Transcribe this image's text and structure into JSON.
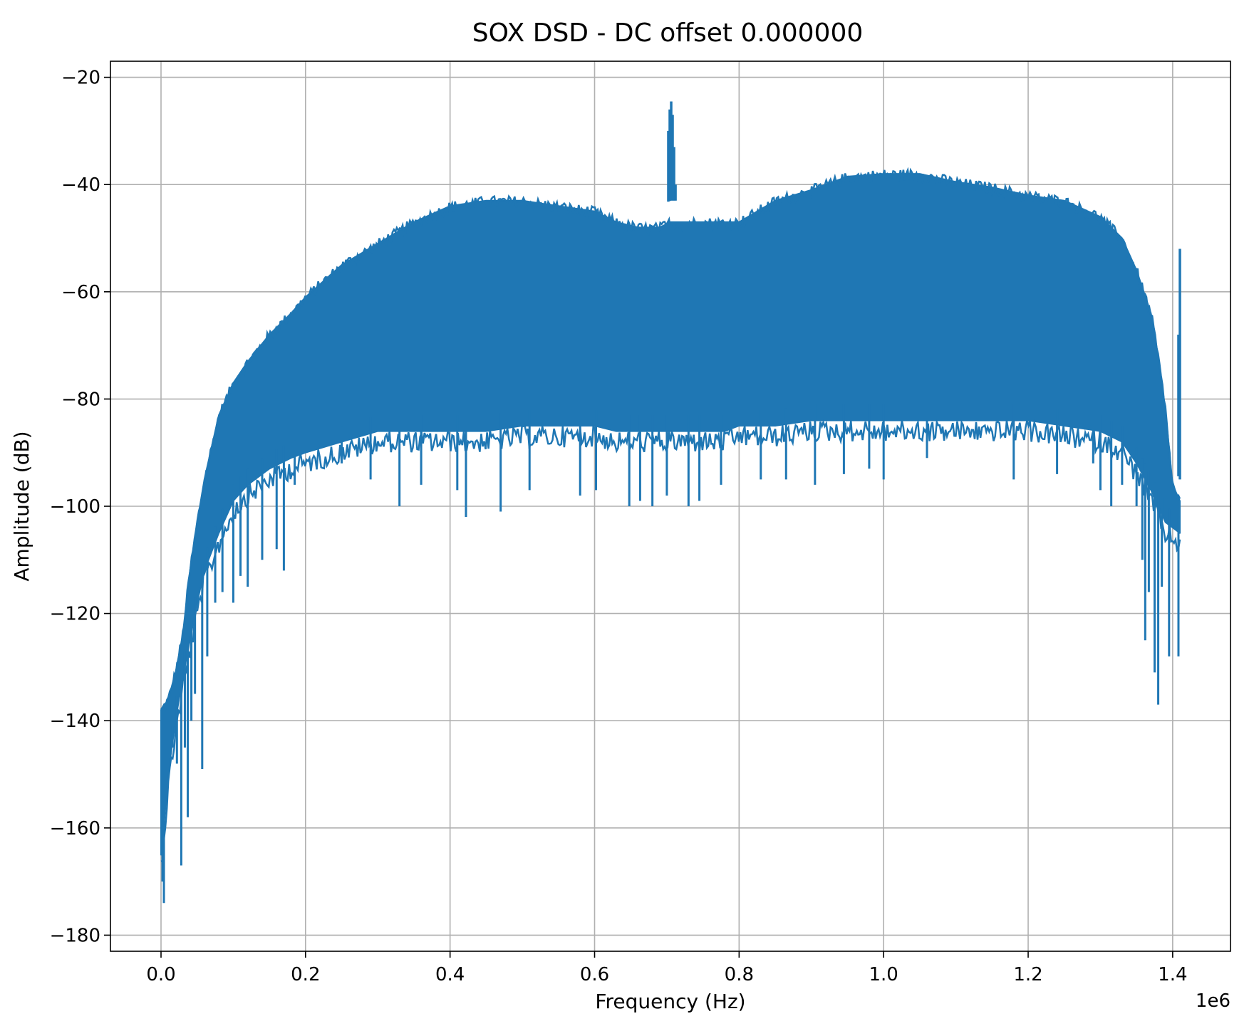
{
  "chart_data": {
    "type": "line",
    "title": "SOX DSD - DC offset 0.000000",
    "xlabel": "Frequency (Hz)",
    "ylabel": "Amplitude (dB)",
    "x_offset_label": "1e6",
    "xlim": [
      -70000,
      1480000
    ],
    "ylim": [
      -183,
      -17
    ],
    "x_ticks": [
      0,
      200000,
      400000,
      600000,
      800000,
      1000000,
      1200000,
      1400000
    ],
    "x_tick_labels": [
      "0.0",
      "0.2",
      "0.4",
      "0.6",
      "0.8",
      "1.0",
      "1.2",
      "1.4"
    ],
    "y_ticks": [
      -180,
      -160,
      -140,
      -120,
      -100,
      -80,
      -60,
      -40,
      -20
    ],
    "y_tick_labels": [
      "−180",
      "−160",
      "−140",
      "−120",
      "−100",
      "−80",
      "−60",
      "−40",
      "−20"
    ],
    "grid": true,
    "line_color": "#1f77b4",
    "series": [
      {
        "band_x": [
          0,
          5000,
          10000,
          20000,
          30000,
          40000,
          50000,
          60000,
          80000,
          100000,
          120000,
          150000,
          180000,
          200000,
          250000,
          300000,
          350000,
          400000,
          450000,
          500000,
          550000,
          600000,
          630000,
          660000,
          690000,
          705000,
          720000,
          750000,
          780000,
          800000,
          850000,
          900000,
          950000,
          1000000,
          1050000,
          1100000,
          1150000,
          1200000,
          1250000,
          1300000,
          1330000,
          1350000,
          1370000,
          1380000,
          1390000,
          1400000,
          1410000
        ],
        "band_upper": [
          -138,
          -137,
          -136,
          -131,
          -124,
          -112,
          -103,
          -95,
          -83,
          -77,
          -73,
          -68,
          -64,
          -61,
          -55,
          -51,
          -47,
          -44,
          -43,
          -43,
          -44,
          -45,
          -47,
          -48,
          -48,
          -47,
          -47,
          -47,
          -47,
          -47,
          -43,
          -41,
          -38.5,
          -38,
          -38,
          -39.5,
          -40.5,
          -42,
          -43,
          -46,
          -50,
          -56,
          -64,
          -72,
          -82,
          -96,
          -99
        ],
        "band_lower": [
          -165,
          -158,
          -150,
          -140,
          -132,
          -125,
          -118,
          -112,
          -105,
          -99,
          -96,
          -93,
          -91,
          -90,
          -88,
          -86,
          -86,
          -86,
          -86,
          -85,
          -85,
          -85,
          -86,
          -86,
          -86,
          -86,
          -86,
          -86,
          -86,
          -85,
          -85,
          -84,
          -84,
          -84,
          -84,
          -84,
          -84,
          -84,
          -85,
          -86,
          -88,
          -92,
          -97,
          -100,
          -103,
          -104,
          -105
        ],
        "spikes_down": [
          [
            2000,
            -170
          ],
          [
            4000,
            -174
          ],
          [
            10000,
            -150
          ],
          [
            16000,
            -145
          ],
          [
            22000,
            -148
          ],
          [
            28000,
            -167
          ],
          [
            33000,
            -145
          ],
          [
            37000,
            -158
          ],
          [
            42000,
            -140
          ],
          [
            47000,
            -135
          ],
          [
            57000,
            -149
          ],
          [
            64000,
            -128
          ],
          [
            75000,
            -118
          ],
          [
            85000,
            -116
          ],
          [
            100000,
            -118
          ],
          [
            110000,
            -113
          ],
          [
            120000,
            -115
          ],
          [
            140000,
            -110
          ],
          [
            160000,
            -108
          ],
          [
            170000,
            -112
          ],
          [
            185000,
            -96
          ],
          [
            250000,
            -92
          ],
          [
            290000,
            -95
          ],
          [
            330000,
            -100
          ],
          [
            360000,
            -96
          ],
          [
            410000,
            -97
          ],
          [
            422000,
            -102
          ],
          [
            470000,
            -101
          ],
          [
            510000,
            -97
          ],
          [
            580000,
            -98
          ],
          [
            602000,
            -97
          ],
          [
            648000,
            -100
          ],
          [
            663000,
            -99
          ],
          [
            680000,
            -100
          ],
          [
            700000,
            -98
          ],
          [
            730000,
            -100
          ],
          [
            745000,
            -99
          ],
          [
            775000,
            -96
          ],
          [
            830000,
            -95
          ],
          [
            865000,
            -95
          ],
          [
            905000,
            -96
          ],
          [
            945000,
            -94
          ],
          [
            980000,
            -93
          ],
          [
            1000000,
            -95
          ],
          [
            1060000,
            -91
          ],
          [
            1180000,
            -95
          ],
          [
            1240000,
            -94
          ],
          [
            1290000,
            -92
          ],
          [
            1300000,
            -97
          ],
          [
            1315000,
            -100
          ],
          [
            1330000,
            -96
          ],
          [
            1350000,
            -100
          ],
          [
            1358000,
            -110
          ],
          [
            1362000,
            -125
          ],
          [
            1367000,
            -116
          ],
          [
            1375000,
            -131
          ],
          [
            1380000,
            -137
          ],
          [
            1385000,
            -115
          ],
          [
            1395000,
            -128
          ],
          [
            1408000,
            -128
          ]
        ],
        "spikes_up": [
          [
            702000,
            -30
          ],
          [
            704000,
            -26
          ],
          [
            706000,
            -24.5
          ],
          [
            708000,
            -27
          ],
          [
            710000,
            -33
          ],
          [
            712000,
            -40
          ],
          [
            1408000,
            -68
          ],
          [
            1410000,
            -52
          ]
        ]
      }
    ]
  }
}
